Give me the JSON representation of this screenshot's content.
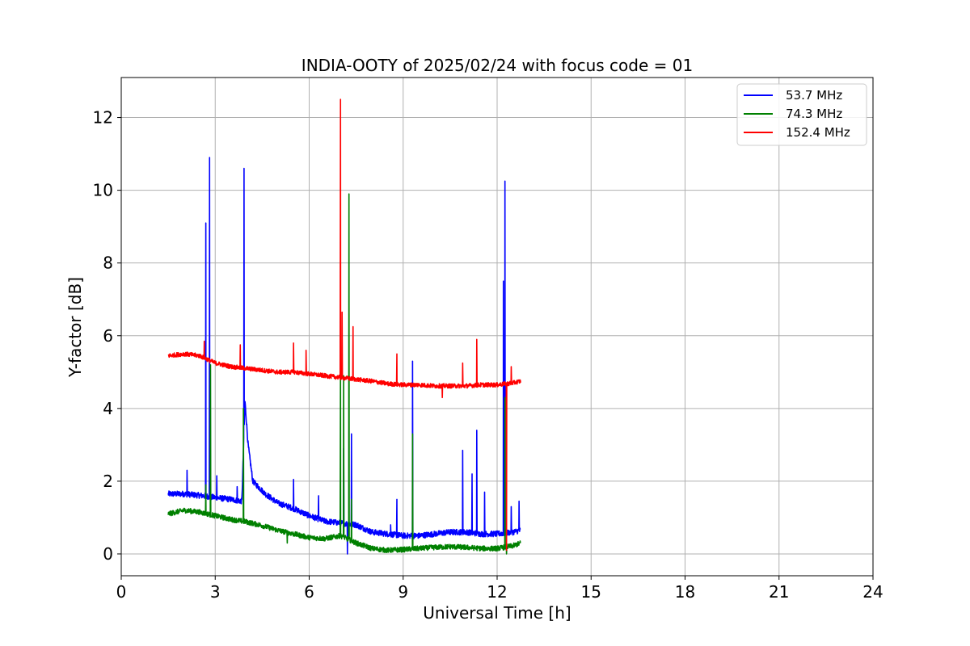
{
  "chart_data": {
    "type": "line",
    "title": "INDIA-OOTY of 2025/02/24 with focus code = 01",
    "xlabel": "Universal Time [h]",
    "ylabel": "Y-factor [dB]",
    "xlim": [
      0,
      24
    ],
    "ylim": [
      -0.6,
      13.1
    ],
    "xticks": [
      0,
      3,
      6,
      9,
      12,
      15,
      18,
      21,
      24
    ],
    "yticks": [
      0,
      2,
      4,
      6,
      8,
      10,
      12
    ],
    "grid": true,
    "legend_position": "top-right",
    "series": [
      {
        "name": "  53.7 MHz",
        "color": "#0000ff",
        "baseline": [
          [
            1.5,
            1.65
          ],
          [
            2.0,
            1.65
          ],
          [
            2.6,
            1.6
          ],
          [
            3.0,
            1.55
          ],
          [
            3.5,
            1.5
          ],
          [
            3.85,
            1.45
          ],
          [
            3.95,
            4.2
          ],
          [
            4.05,
            3.0
          ],
          [
            4.2,
            2.0
          ],
          [
            4.6,
            1.65
          ],
          [
            5.0,
            1.4
          ],
          [
            5.5,
            1.25
          ],
          [
            6.0,
            1.05
          ],
          [
            6.5,
            0.9
          ],
          [
            7.0,
            0.85
          ],
          [
            7.5,
            0.8
          ],
          [
            8.0,
            0.6
          ],
          [
            8.5,
            0.55
          ],
          [
            9.0,
            0.5
          ],
          [
            9.5,
            0.5
          ],
          [
            10.0,
            0.55
          ],
          [
            10.5,
            0.6
          ],
          [
            11.0,
            0.6
          ],
          [
            11.5,
            0.55
          ],
          [
            12.0,
            0.55
          ],
          [
            12.5,
            0.6
          ],
          [
            12.75,
            0.65
          ]
        ],
        "noise": 0.08,
        "spikes": [
          [
            2.1,
            2.3
          ],
          [
            2.7,
            9.1
          ],
          [
            2.82,
            10.9
          ],
          [
            3.05,
            2.15
          ],
          [
            3.7,
            1.85
          ],
          [
            3.92,
            10.6
          ],
          [
            5.5,
            2.05
          ],
          [
            6.3,
            1.6
          ],
          [
            7.1,
            2.9
          ],
          [
            7.22,
            0.0
          ],
          [
            7.35,
            3.3
          ],
          [
            8.6,
            0.8
          ],
          [
            8.8,
            1.5
          ],
          [
            9.3,
            5.3
          ],
          [
            10.9,
            2.85
          ],
          [
            11.2,
            2.2
          ],
          [
            11.35,
            3.4
          ],
          [
            11.6,
            1.7
          ],
          [
            12.2,
            7.5
          ],
          [
            12.25,
            10.25
          ],
          [
            12.45,
            1.3
          ],
          [
            12.7,
            1.45
          ]
        ]
      },
      {
        "name": "  74.3 MHz",
        "color": "#008000",
        "baseline": [
          [
            1.5,
            1.1
          ],
          [
            2.0,
            1.2
          ],
          [
            2.5,
            1.15
          ],
          [
            3.0,
            1.05
          ],
          [
            3.5,
            0.95
          ],
          [
            4.0,
            0.88
          ],
          [
            4.5,
            0.78
          ],
          [
            5.0,
            0.65
          ],
          [
            5.5,
            0.55
          ],
          [
            6.0,
            0.45
          ],
          [
            6.5,
            0.42
          ],
          [
            7.0,
            0.5
          ],
          [
            7.5,
            0.3
          ],
          [
            8.0,
            0.15
          ],
          [
            8.5,
            0.1
          ],
          [
            9.0,
            0.12
          ],
          [
            9.5,
            0.15
          ],
          [
            10.0,
            0.18
          ],
          [
            10.5,
            0.2
          ],
          [
            11.0,
            0.18
          ],
          [
            11.5,
            0.15
          ],
          [
            12.0,
            0.15
          ],
          [
            12.5,
            0.22
          ],
          [
            12.75,
            0.3
          ]
        ],
        "noise": 0.07,
        "spikes": [
          [
            2.7,
            1.9
          ],
          [
            2.85,
            5.2
          ],
          [
            3.9,
            4.0
          ],
          [
            5.3,
            0.3
          ],
          [
            7.0,
            5.3
          ],
          [
            7.1,
            4.9
          ],
          [
            7.27,
            9.9
          ],
          [
            7.35,
            1.5
          ],
          [
            9.3,
            3.3
          ],
          [
            12.25,
            4.3
          ],
          [
            12.3,
            0.0
          ]
        ]
      },
      {
        "name": "152.4 MHz",
        "color": "#ff0000",
        "baseline": [
          [
            1.5,
            5.45
          ],
          [
            2.0,
            5.5
          ],
          [
            2.5,
            5.45
          ],
          [
            3.0,
            5.25
          ],
          [
            3.5,
            5.15
          ],
          [
            4.0,
            5.1
          ],
          [
            4.5,
            5.05
          ],
          [
            5.0,
            5.0
          ],
          [
            5.5,
            5.0
          ],
          [
            6.0,
            4.95
          ],
          [
            6.5,
            4.9
          ],
          [
            7.0,
            4.85
          ],
          [
            7.5,
            4.8
          ],
          [
            8.0,
            4.75
          ],
          [
            8.5,
            4.68
          ],
          [
            9.0,
            4.65
          ],
          [
            9.5,
            4.65
          ],
          [
            10.0,
            4.62
          ],
          [
            10.5,
            4.62
          ],
          [
            11.0,
            4.62
          ],
          [
            11.5,
            4.65
          ],
          [
            12.0,
            4.65
          ],
          [
            12.5,
            4.7
          ],
          [
            12.75,
            4.75
          ]
        ],
        "noise": 0.06,
        "spikes": [
          [
            2.65,
            5.85
          ],
          [
            3.8,
            5.75
          ],
          [
            5.5,
            5.8
          ],
          [
            5.9,
            5.6
          ],
          [
            7.0,
            12.5
          ],
          [
            7.05,
            6.65
          ],
          [
            7.4,
            6.25
          ],
          [
            8.8,
            5.5
          ],
          [
            10.25,
            4.3
          ],
          [
            10.9,
            5.25
          ],
          [
            11.35,
            5.9
          ],
          [
            12.3,
            0.1
          ],
          [
            12.45,
            5.15
          ]
        ]
      }
    ]
  }
}
